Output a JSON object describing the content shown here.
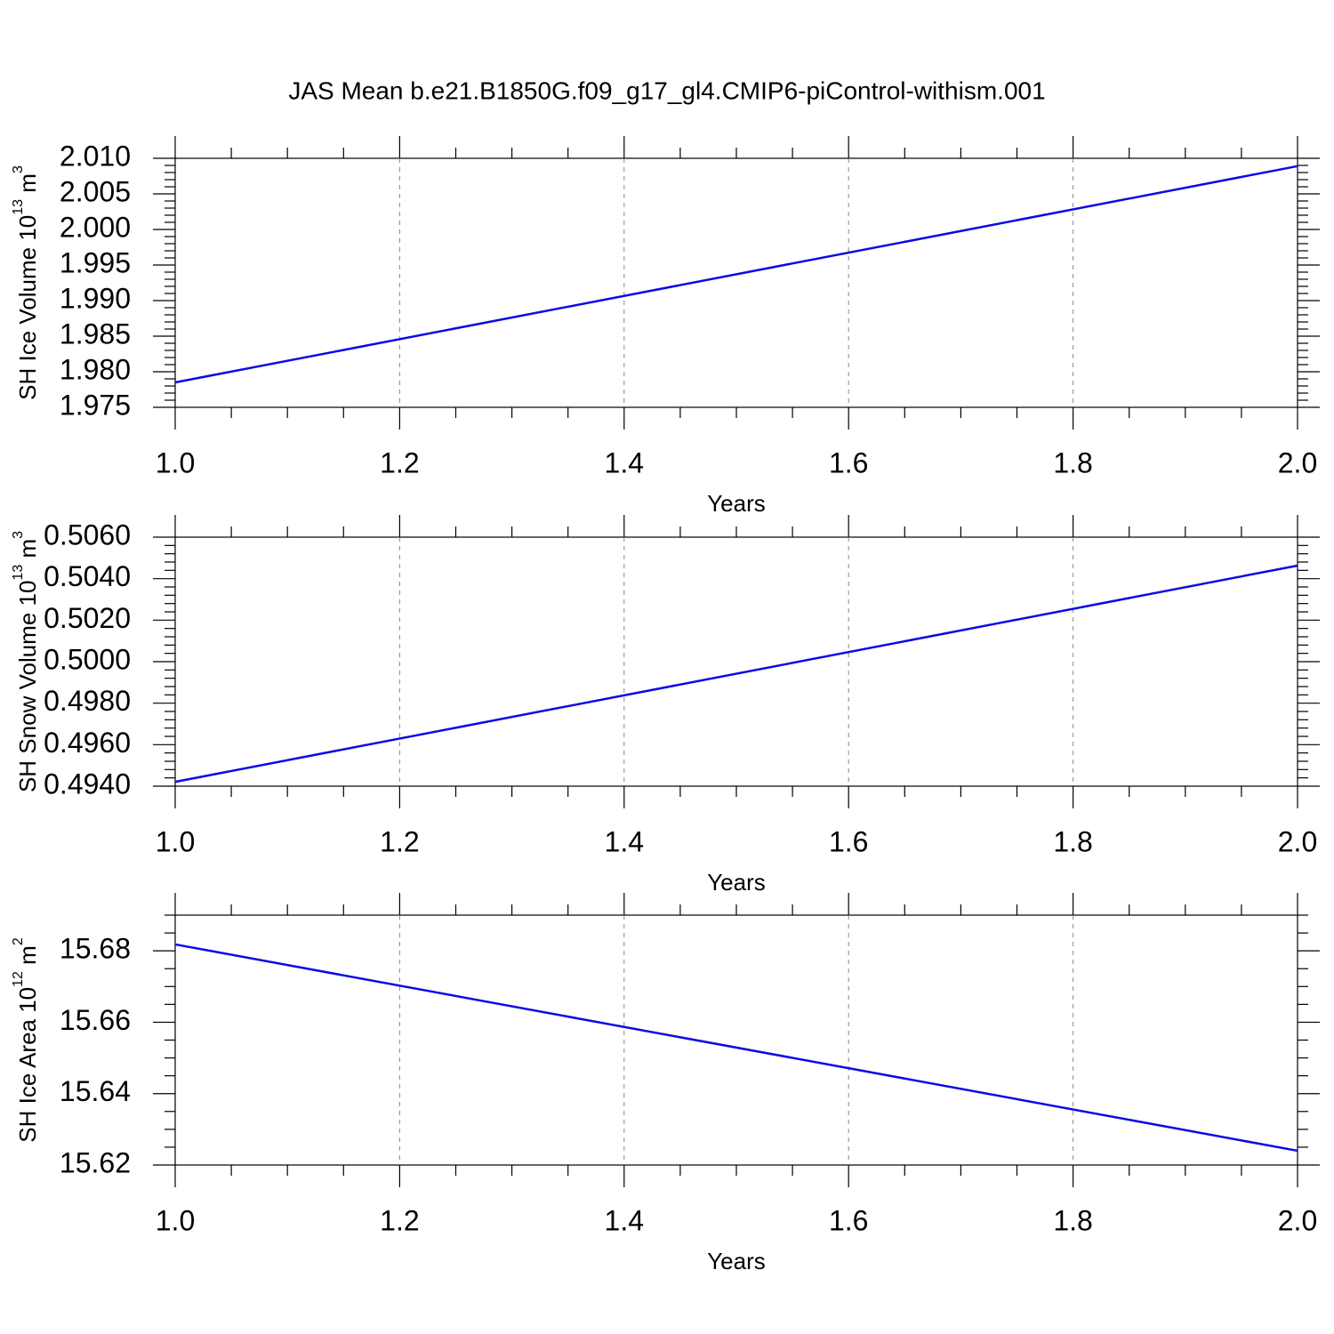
{
  "title": "JAS Mean b.e21.B1850G.f09_g17_gl4.CMIP6-piControl-withism.001",
  "chart_data": [
    {
      "type": "line",
      "xlabel": "Years",
      "ylabel": [
        "SH Ice Volume 10",
        "13",
        " m",
        "3"
      ],
      "x": [
        1,
        2
      ],
      "series": [
        {
          "color": "#0a0ae6",
          "values": [
            1.9785,
            2.0089
          ]
        }
      ],
      "xlim": [
        1,
        2
      ],
      "xticks": [
        {
          "value": 1,
          "label": "1.0"
        },
        1.2,
        1.4,
        1.6,
        1.8,
        {
          "value": 2,
          "label": "2.0"
        }
      ],
      "ylim": [
        1.975,
        2.01
      ],
      "yticks": [
        1.975,
        {
          "value": 1.98,
          "label": "1.980"
        },
        1.985,
        {
          "value": 1.99,
          "label": "1.990"
        },
        1.995,
        {
          "value": 2.0,
          "label": "2.000"
        },
        2.005,
        {
          "value": 2.01,
          "label": "2.010"
        }
      ],
      "grid": "x"
    },
    {
      "type": "line",
      "xlabel": "Years",
      "ylabel": [
        "SH Snow Volume 10",
        "13",
        " m",
        "3"
      ],
      "x": [
        1,
        2
      ],
      "series": [
        {
          "color": "#0a0ae6",
          "values": [
            0.49421,
            0.50463
          ]
        }
      ],
      "xlim": [
        1,
        2
      ],
      "xticks": [
        {
          "value": 1,
          "label": "1.0"
        },
        1.2,
        1.4,
        1.6,
        1.8,
        {
          "value": 2,
          "label": "2.0"
        }
      ],
      "ylim": [
        0.494,
        0.506
      ],
      "yticks": [
        {
          "value": 0.494,
          "label": "0.4940"
        },
        {
          "value": 0.496,
          "label": "0.4960"
        },
        {
          "value": 0.498,
          "label": "0.4980"
        },
        {
          "value": 0.5,
          "label": "0.5000"
        },
        {
          "value": 0.502,
          "label": "0.5020"
        },
        {
          "value": 0.504,
          "label": "0.5040"
        },
        {
          "value": 0.506,
          "label": "0.5060"
        }
      ],
      "grid": "x"
    },
    {
      "type": "line",
      "xlabel": "Years",
      "ylabel": [
        "SH Ice Area 10",
        "12",
        " m",
        "2"
      ],
      "x": [
        1,
        2
      ],
      "series": [
        {
          "color": "#0a0ae6",
          "values": [
            15.6818,
            15.624
          ]
        }
      ],
      "xlim": [
        1,
        2
      ],
      "xticks": [
        {
          "value": 1,
          "label": "1.0"
        },
        1.2,
        1.4,
        1.6,
        1.8,
        {
          "value": 2,
          "label": "2.0"
        }
      ],
      "ylim": [
        15.62,
        15.69
      ],
      "yticks": [
        15.62,
        15.64,
        15.66,
        15.68
      ],
      "grid": "x"
    }
  ]
}
